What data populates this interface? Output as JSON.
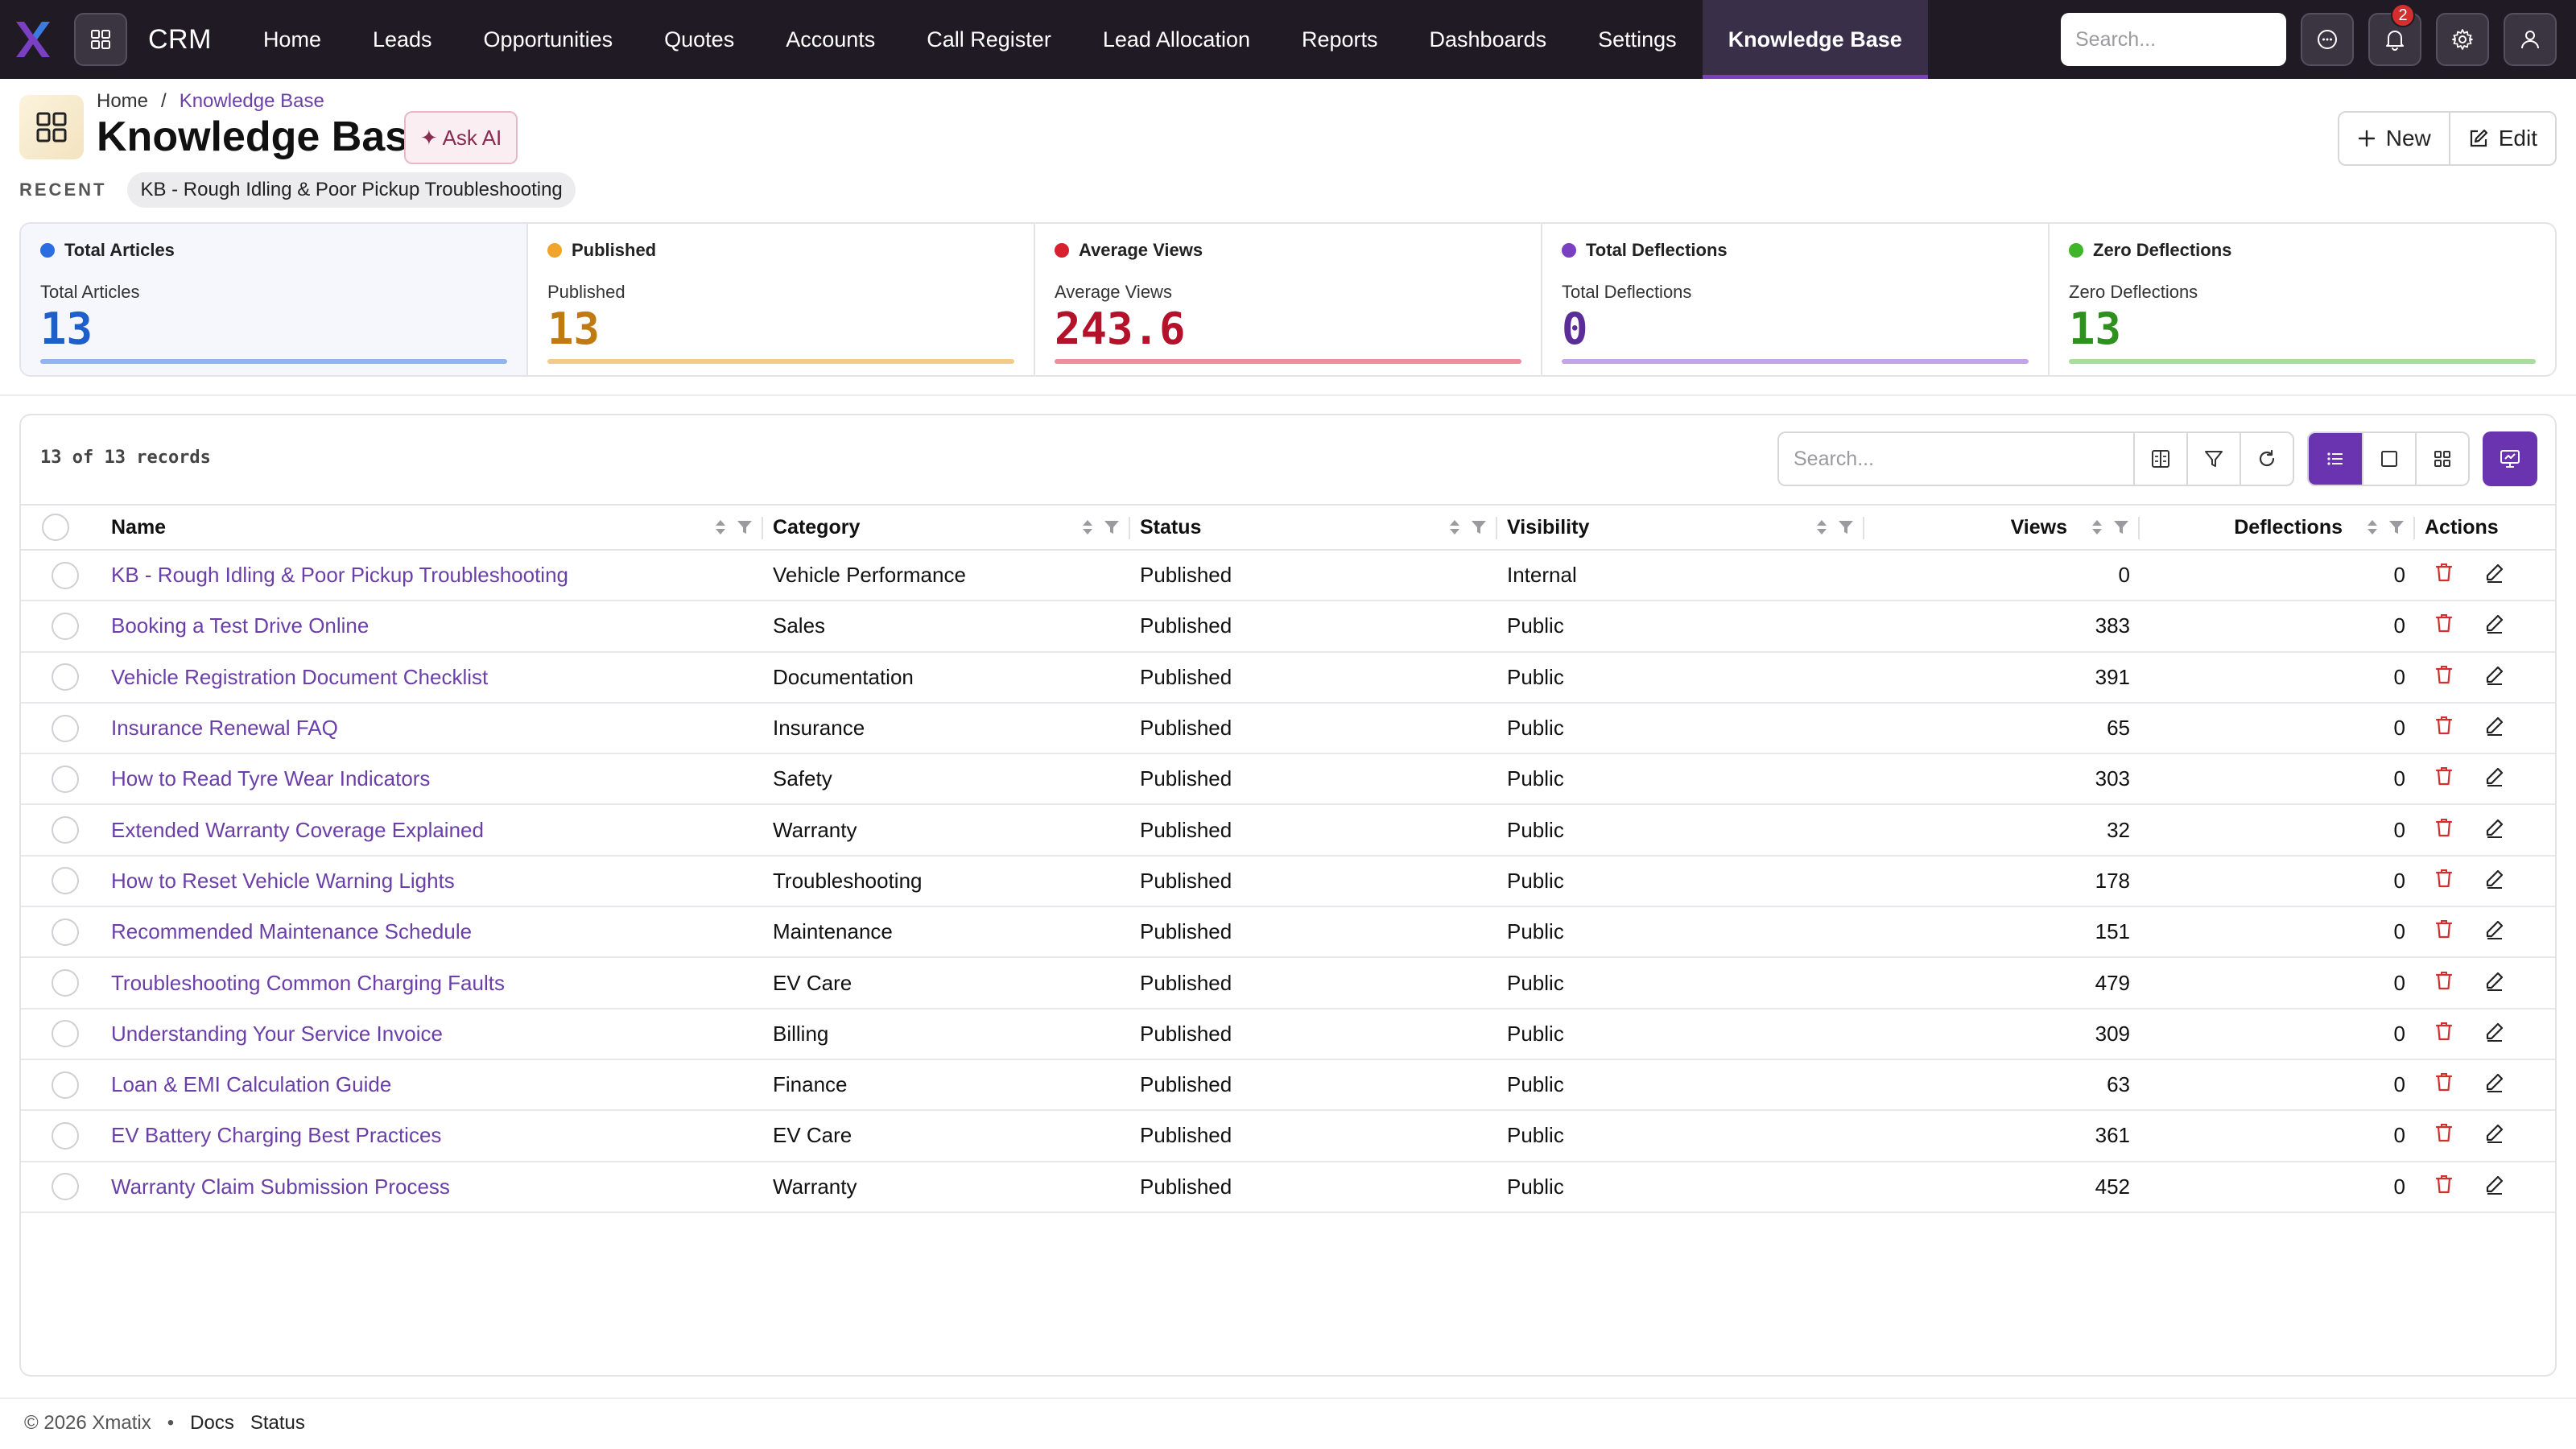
{
  "nav": {
    "brand": "CRM",
    "items": [
      {
        "label": "Home"
      },
      {
        "label": "Leads"
      },
      {
        "label": "Opportunities"
      },
      {
        "label": "Quotes"
      },
      {
        "label": "Accounts"
      },
      {
        "label": "Call Register"
      },
      {
        "label": "Lead Allocation"
      },
      {
        "label": "Reports"
      },
      {
        "label": "Dashboards"
      },
      {
        "label": "Settings"
      },
      {
        "label": "Knowledge Base"
      }
    ],
    "active_index": 10,
    "search_placeholder": "Search...",
    "notification_count": "2"
  },
  "header": {
    "breadcrumb_home": "Home",
    "breadcrumb_sep": "/",
    "breadcrumb_current": "Knowledge Base",
    "title": "Knowledge Base",
    "ask_ai": "✦ Ask AI",
    "new_label": "New",
    "edit_label": "Edit",
    "recent_label": "RECENT",
    "recent_item": "KB - Rough Idling & Poor Pickup Troubleshooting"
  },
  "stats": [
    {
      "title": "Total Articles",
      "label": "Total Articles",
      "value": "13",
      "color": "#1f5fc9",
      "dot": "#2a6de0",
      "bar": "#8fb4f0"
    },
    {
      "title": "Published",
      "label": "Published",
      "value": "13",
      "color": "#c07a12",
      "dot": "#f0a52a",
      "bar": "#f5c98a"
    },
    {
      "title": "Average Views",
      "label": "Average Views",
      "value": "243.6",
      "color": "#b3122a",
      "dot": "#d8202f",
      "bar": "#ec8f9a"
    },
    {
      "title": "Total Deflections",
      "label": "Total Deflections",
      "value": "0",
      "color": "#5a2d99",
      "dot": "#7b3fc4",
      "bar": "#c3a3ea"
    },
    {
      "title": "Zero Deflections",
      "label": "Zero Deflections",
      "value": "13",
      "color": "#2f8f1f",
      "dot": "#3fb52a",
      "bar": "#a8dd9a"
    }
  ],
  "table": {
    "records_text": "13 of 13 records",
    "search_placeholder": "Search...",
    "columns": {
      "name": "Name",
      "category": "Category",
      "status": "Status",
      "visibility": "Visibility",
      "views": "Views",
      "deflections": "Deflections",
      "actions": "Actions"
    },
    "rows": [
      {
        "name": "KB - Rough Idling & Poor Pickup Troubleshooting",
        "category": "Vehicle Performance",
        "status": "Published",
        "visibility": "Internal",
        "views": "0",
        "deflections": "0"
      },
      {
        "name": "Booking a Test Drive Online",
        "category": "Sales",
        "status": "Published",
        "visibility": "Public",
        "views": "383",
        "deflections": "0"
      },
      {
        "name": "Vehicle Registration Document Checklist",
        "category": "Documentation",
        "status": "Published",
        "visibility": "Public",
        "views": "391",
        "deflections": "0"
      },
      {
        "name": "Insurance Renewal FAQ",
        "category": "Insurance",
        "status": "Published",
        "visibility": "Public",
        "views": "65",
        "deflections": "0"
      },
      {
        "name": "How to Read Tyre Wear Indicators",
        "category": "Safety",
        "status": "Published",
        "visibility": "Public",
        "views": "303",
        "deflections": "0"
      },
      {
        "name": "Extended Warranty Coverage Explained",
        "category": "Warranty",
        "status": "Published",
        "visibility": "Public",
        "views": "32",
        "deflections": "0"
      },
      {
        "name": "How to Reset Vehicle Warning Lights",
        "category": "Troubleshooting",
        "status": "Published",
        "visibility": "Public",
        "views": "178",
        "deflections": "0"
      },
      {
        "name": "Recommended Maintenance Schedule",
        "category": "Maintenance",
        "status": "Published",
        "visibility": "Public",
        "views": "151",
        "deflections": "0"
      },
      {
        "name": "Troubleshooting Common Charging Faults",
        "category": "EV Care",
        "status": "Published",
        "visibility": "Public",
        "views": "479",
        "deflections": "0"
      },
      {
        "name": "Understanding Your Service Invoice",
        "category": "Billing",
        "status": "Published",
        "visibility": "Public",
        "views": "309",
        "deflections": "0"
      },
      {
        "name": "Loan & EMI Calculation Guide",
        "category": "Finance",
        "status": "Published",
        "visibility": "Public",
        "views": "63",
        "deflections": "0"
      },
      {
        "name": "EV Battery Charging Best Practices",
        "category": "EV Care",
        "status": "Published",
        "visibility": "Public",
        "views": "361",
        "deflections": "0"
      },
      {
        "name": "Warranty Claim Submission Process",
        "category": "Warranty",
        "status": "Published",
        "visibility": "Public",
        "views": "452",
        "deflections": "0"
      }
    ]
  },
  "footer": {
    "copyright": "© 2026 Xmatix",
    "bullet": "•",
    "docs": "Docs",
    "status": "Status"
  },
  "theme": {
    "nav_bg": "#1f1a24",
    "accent": "#6a34b0",
    "link": "#6b3fa8",
    "delete_icon": "#d32f2f"
  }
}
